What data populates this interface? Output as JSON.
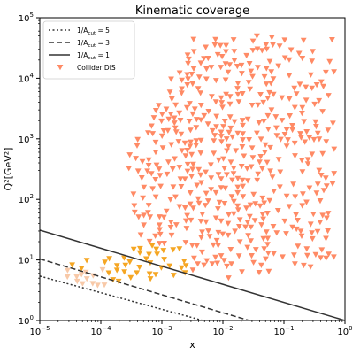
{
  "chart_data": {
    "type": "scatter",
    "title": "Kinematic coverage",
    "xlabel": "x",
    "ylabel": "Q²[GeV²]",
    "xscale": "log",
    "yscale": "log",
    "xlim": [
      1e-05,
      1
    ],
    "ylim": [
      1,
      100000
    ],
    "x_ticks": [
      {
        "base": "10",
        "exp": "−5"
      },
      {
        "base": "10",
        "exp": "−4"
      },
      {
        "base": "10",
        "exp": "−3"
      },
      {
        "base": "10",
        "exp": "−2"
      },
      {
        "base": "10",
        "exp": "−1"
      },
      {
        "base": "10",
        "exp": "0"
      }
    ],
    "y_ticks": [
      {
        "base": "10",
        "exp": "0"
      },
      {
        "base": "10",
        "exp": "1"
      },
      {
        "base": "10",
        "exp": "2"
      },
      {
        "base": "10",
        "exp": "3"
      },
      {
        "base": "10",
        "exp": "4"
      },
      {
        "base": "10",
        "exp": "5"
      }
    ],
    "legend_position": "upper-left",
    "legend": [
      {
        "label_main": "1/A",
        "label_sub": "cut",
        "label_rest": " = 5",
        "style": "dotted"
      },
      {
        "label_main": "1/A",
        "label_sub": "cut",
        "label_rest": " = 3",
        "style": "dashed"
      },
      {
        "label_main": "1/A",
        "label_sub": "cut",
        "label_rest": " = 1",
        "style": "solid"
      },
      {
        "label_main": "Collider DIS",
        "label_sub": "",
        "label_rest": "",
        "style": "marker"
      }
    ],
    "lines": [
      {
        "name": "1/A_cut = 5",
        "style": "dotted",
        "x": [
          1e-05,
          0.0047
        ],
        "y": [
          5.4,
          1
        ]
      },
      {
        "name": "1/A_cut = 3",
        "style": "dashed",
        "x": [
          1e-05,
          0.027
        ],
        "y": [
          10.4,
          1
        ]
      },
      {
        "name": "1/A_cut = 1",
        "style": "solid",
        "x": [
          1e-05,
          1
        ],
        "y": [
          31,
          1
        ]
      }
    ],
    "marker_colors": [
      "#ff8a65",
      "#f5a623",
      "#f8c9a8"
    ],
    "line_color": "#333333"
  }
}
